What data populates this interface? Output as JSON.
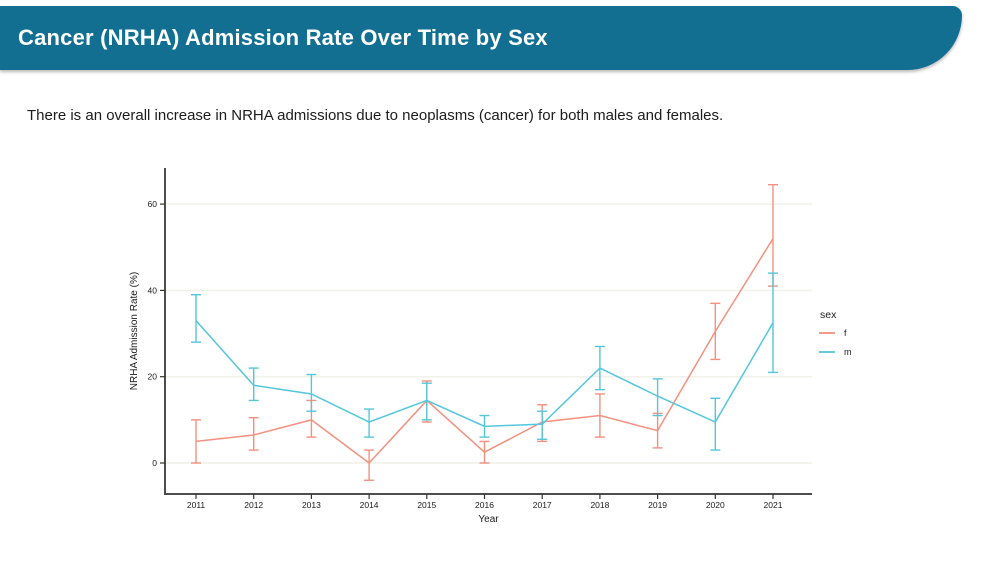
{
  "page": {
    "background_color": "#ffffff"
  },
  "header": {
    "title": "Cancer (NRHA) Admission Rate Over Time by Sex",
    "bg_color": "#126F92",
    "text_color": "#ffffff"
  },
  "subtitle": "There is an overall increase in NRHA admissions due to neoplasms (cancer) for both males and females.",
  "chart_data": {
    "type": "line",
    "title": "",
    "xlabel": "Year",
    "ylabel": "NRHA Admission Rate (%)",
    "x": [
      2011,
      2012,
      2013,
      2014,
      2015,
      2016,
      2017,
      2018,
      2019,
      2020,
      2021
    ],
    "yticks": [
      0,
      20,
      40,
      60
    ],
    "ylim": [
      -7,
      68
    ],
    "grid": "horizontal-major-only",
    "error_bars": true,
    "legend": {
      "title": "sex",
      "position": "right",
      "entries": [
        "f",
        "m"
      ]
    },
    "series": [
      {
        "name": "f",
        "color": "#F5907E",
        "values": [
          5,
          6.5,
          10,
          0,
          14.5,
          2.5,
          9.5,
          11,
          7.5,
          30.5,
          52
        ],
        "ci_low": [
          0,
          3,
          6,
          -4,
          9.5,
          0,
          5,
          6,
          3.5,
          24,
          41
        ],
        "ci_high": [
          10,
          10.5,
          14.5,
          3,
          19,
          5,
          13.5,
          16,
          11.5,
          37,
          64.5
        ]
      },
      {
        "name": "m",
        "color": "#53C6DB",
        "values": [
          33,
          18,
          16,
          9.5,
          14.5,
          8.5,
          9,
          22,
          15.5,
          9.5,
          32.5
        ],
        "ci_low": [
          28,
          14.5,
          12,
          6,
          10,
          6,
          5.5,
          17,
          11,
          3,
          21
        ],
        "ci_high": [
          39,
          22,
          20.5,
          12.5,
          18.5,
          11,
          12,
          27,
          19.5,
          15,
          44
        ]
      }
    ],
    "axis_color": "#4D4D4D",
    "grid_color": "#F1F0E9",
    "tick_color": "#333333",
    "tick_label_color": "#1a1a1a"
  }
}
